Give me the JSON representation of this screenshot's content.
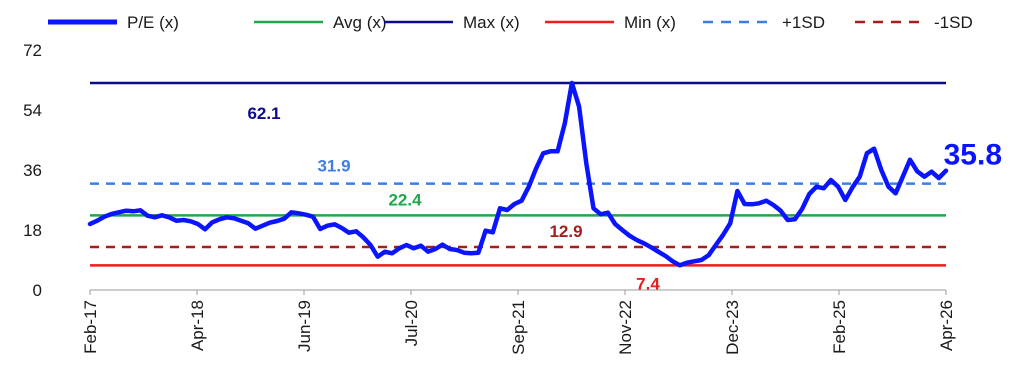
{
  "chart_data": {
    "type": "line",
    "ylim": [
      0,
      72
    ],
    "yticks": [
      "0",
      "18",
      "36",
      "54",
      "72"
    ],
    "x_tick_labels": [
      "Feb-17",
      "Apr-18",
      "Jun-19",
      "Jul-20",
      "Sep-21",
      "Nov-22",
      "Dec-23",
      "Feb-25",
      "Apr-26"
    ],
    "grid": false,
    "legend_position": "top",
    "legend": [
      {
        "name": "P/E (x)",
        "color": "#0a14ff",
        "dashed": false
      },
      {
        "name": "Avg (x)",
        "color": "#1fa84b",
        "dashed": false
      },
      {
        "name": "Max (x)",
        "color": "#0b0b8c",
        "dashed": false
      },
      {
        "name": "Min (x)",
        "color": "#ee1c1c",
        "dashed": false
      },
      {
        "name": "+1SD",
        "color": "#3d7fe0",
        "dashed": true
      },
      {
        "name": "-1SD",
        "color": "#a41e1e",
        "dashed": true
      }
    ],
    "reference_lines": [
      {
        "name": "Max (x)",
        "value": 62.1,
        "label": "62.1",
        "color": "#0b0b8c"
      },
      {
        "name": "+1SD",
        "value": 31.9,
        "label": "31.9",
        "color": "#3d7fe0"
      },
      {
        "name": "Avg (x)",
        "value": 22.4,
        "label": "22.4",
        "color": "#1fa84b"
      },
      {
        "name": "-1SD",
        "value": 12.9,
        "label": "12.9",
        "color": "#a41e1e"
      },
      {
        "name": "Min (x)",
        "value": 7.4,
        "label": "7.4",
        "color": "#ee1c1c"
      }
    ],
    "series": [
      {
        "name": "P/E (x)",
        "color": "#0a14ff",
        "last_value_label": "35.8",
        "values": [
          [
            0,
            19.8
          ],
          [
            1,
            20.8
          ],
          [
            2,
            22.0
          ],
          [
            3,
            22.8
          ],
          [
            4,
            23.3
          ],
          [
            5,
            23.8
          ],
          [
            6,
            23.6
          ],
          [
            7,
            23.9
          ],
          [
            8,
            22.3
          ],
          [
            9,
            21.8
          ],
          [
            10,
            22.4
          ],
          [
            11,
            21.8
          ],
          [
            12,
            20.8
          ],
          [
            13,
            21.0
          ],
          [
            14,
            20.6
          ],
          [
            15,
            19.8
          ],
          [
            16,
            18.2
          ],
          [
            17,
            20.3
          ],
          [
            18,
            21.2
          ],
          [
            19,
            21.8
          ],
          [
            20,
            21.5
          ],
          [
            21,
            20.8
          ],
          [
            22,
            20.0
          ],
          [
            23,
            18.4
          ],
          [
            24,
            19.3
          ],
          [
            25,
            20.2
          ],
          [
            26,
            20.7
          ],
          [
            27,
            21.4
          ],
          [
            28,
            23.3
          ],
          [
            29,
            23.0
          ],
          [
            30,
            22.6
          ],
          [
            31,
            22.0
          ],
          [
            32,
            18.3
          ],
          [
            33,
            19.3
          ],
          [
            34,
            19.7
          ],
          [
            35,
            18.6
          ],
          [
            36,
            17.2
          ],
          [
            37,
            17.6
          ],
          [
            38,
            15.8
          ],
          [
            39,
            13.5
          ],
          [
            40,
            10.0
          ],
          [
            41,
            11.5
          ],
          [
            42,
            11.0
          ],
          [
            43,
            12.5
          ],
          [
            44,
            13.5
          ],
          [
            45,
            12.5
          ],
          [
            46,
            13.3
          ],
          [
            47,
            11.5
          ],
          [
            48,
            12.3
          ],
          [
            49,
            13.6
          ],
          [
            50,
            12.3
          ],
          [
            51,
            12.0
          ],
          [
            52,
            11.2
          ],
          [
            53,
            11.0
          ],
          [
            54,
            11.2
          ],
          [
            55,
            17.8
          ],
          [
            56,
            17.3
          ],
          [
            57,
            24.5
          ],
          [
            58,
            24.0
          ],
          [
            59,
            25.8
          ],
          [
            60,
            26.8
          ],
          [
            61,
            31.0
          ],
          [
            62,
            36.4
          ],
          [
            63,
            41.0
          ],
          [
            64,
            41.6
          ],
          [
            65,
            41.6
          ],
          [
            66,
            50.0
          ],
          [
            67,
            62.1
          ],
          [
            68,
            55.0
          ],
          [
            69,
            38.0
          ],
          [
            70,
            24.5
          ],
          [
            71,
            22.7
          ],
          [
            72,
            23.2
          ],
          [
            73,
            19.8
          ],
          [
            74,
            18.0
          ],
          [
            75,
            16.3
          ],
          [
            76,
            15.0
          ],
          [
            77,
            14.0
          ],
          [
            78,
            12.8
          ],
          [
            79,
            11.5
          ],
          [
            80,
            10.2
          ],
          [
            81,
            8.6
          ],
          [
            82,
            7.4
          ],
          [
            83,
            8.2
          ],
          [
            84,
            8.6
          ],
          [
            85,
            9.0
          ],
          [
            86,
            10.4
          ],
          [
            87,
            13.5
          ],
          [
            88,
            16.5
          ],
          [
            89,
            20.0
          ],
          [
            90,
            29.7
          ],
          [
            91,
            25.8
          ],
          [
            92,
            25.7
          ],
          [
            93,
            26.0
          ],
          [
            94,
            26.8
          ],
          [
            95,
            25.5
          ],
          [
            96,
            23.8
          ],
          [
            97,
            21.0
          ],
          [
            98,
            21.2
          ],
          [
            99,
            24.3
          ],
          [
            100,
            28.8
          ],
          [
            101,
            31.0
          ],
          [
            102,
            30.5
          ],
          [
            103,
            33.0
          ],
          [
            104,
            31.0
          ],
          [
            105,
            27.0
          ],
          [
            106,
            30.8
          ],
          [
            107,
            34.0
          ],
          [
            108,
            41.0
          ],
          [
            109,
            42.4
          ],
          [
            110,
            36.0
          ],
          [
            111,
            31.0
          ],
          [
            112,
            29.0
          ],
          [
            113,
            34.0
          ],
          [
            114,
            39.1
          ],
          [
            115,
            35.6
          ],
          [
            116,
            34.0
          ],
          [
            117,
            35.5
          ],
          [
            118,
            33.6
          ],
          [
            119,
            35.8
          ]
        ]
      }
    ]
  }
}
